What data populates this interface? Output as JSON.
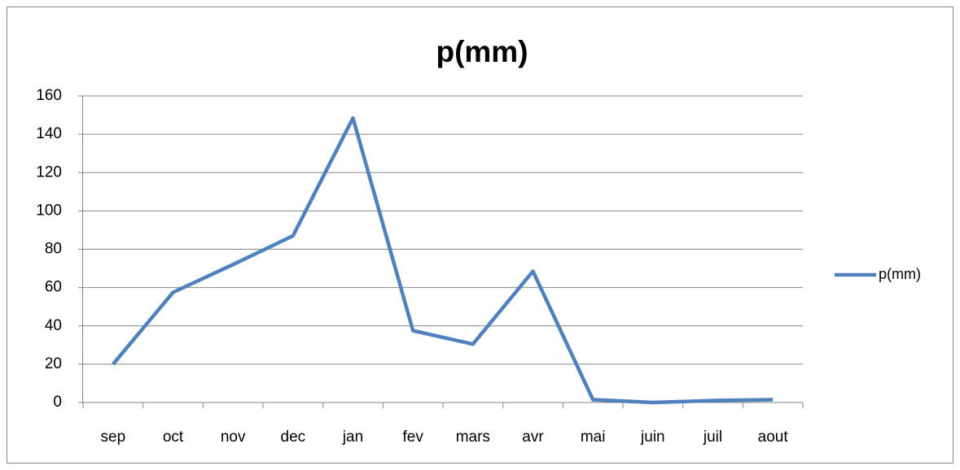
{
  "chart_data": {
    "type": "line",
    "title": "p(mm)",
    "categories": [
      "sep",
      "oct",
      "nov",
      "dec",
      "jan",
      "fev",
      "mars",
      "avr",
      "mai",
      "juin",
      "juil",
      "aout"
    ],
    "series": [
      {
        "name": "p(mm)",
        "color": "#4f81bd",
        "values": [
          20,
          57.5,
          72,
          87,
          148.5,
          37.5,
          30.5,
          68.5,
          1.5,
          0,
          1,
          1.5
        ]
      }
    ],
    "ylim": [
      0,
      160
    ],
    "yticks": [
      0,
      20,
      40,
      60,
      80,
      100,
      120,
      140,
      160
    ],
    "grid": true,
    "legend": "right"
  }
}
